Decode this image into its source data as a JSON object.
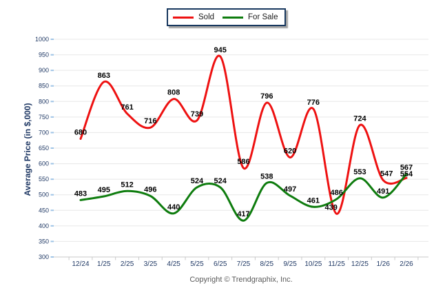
{
  "footer": {
    "copyright": "Copyright © Trendgraphix, Inc."
  },
  "chart_data": {
    "type": "line",
    "smooth": true,
    "title": "",
    "xlabel": "",
    "ylabel": "Average Price (in $,000)",
    "categories": [
      "12/24",
      "1/25",
      "2/25",
      "3/25",
      "4/25",
      "5/25",
      "6/25",
      "7/25",
      "8/25",
      "9/25",
      "10/25",
      "11/25",
      "12/25",
      "1/26",
      "2/26"
    ],
    "series": [
      {
        "name": "Sold",
        "color": "#ee1111",
        "values": [
          680,
          863,
          761,
          716,
          808,
          739,
          945,
          586,
          796,
          620,
          776,
          439,
          724,
          547,
          554
        ]
      },
      {
        "name": "For Sale",
        "color": "#0e7c0e",
        "values": [
          483,
          495,
          512,
          496,
          440,
          524,
          524,
          417,
          538,
          497,
          461,
          486,
          553,
          491,
          567
        ]
      }
    ],
    "ylim": [
      300,
      1000
    ],
    "ytick_step": 50,
    "yticks": [
      300,
      350,
      400,
      450,
      500,
      550,
      600,
      650,
      700,
      750,
      800,
      850,
      900,
      950,
      1000
    ],
    "grid": "horizontal-only",
    "legend_position": "top-center",
    "data_labels": true,
    "colors": {
      "axis_text": "#1f3864",
      "grid_line": "#e7e7e7",
      "axis_line": "#c8c8c8",
      "y_tick": "#9dc3e6",
      "data_label": "#000000",
      "legend_border": "#17375e"
    }
  }
}
